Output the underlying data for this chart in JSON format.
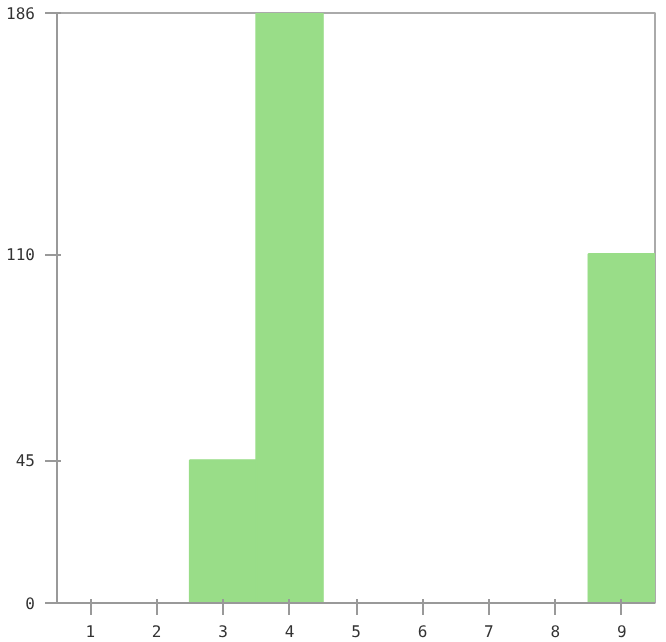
{
  "chart_data": {
    "type": "bar",
    "categories": [
      "1",
      "2",
      "3",
      "4",
      "5",
      "6",
      "7",
      "8",
      "9"
    ],
    "values": [
      0,
      0,
      45,
      186,
      0,
      0,
      0,
      0,
      110
    ],
    "color": "#99dd88",
    "ylim": [
      0,
      186
    ],
    "yticks": [
      0,
      45,
      110,
      186
    ],
    "grid": false
  }
}
